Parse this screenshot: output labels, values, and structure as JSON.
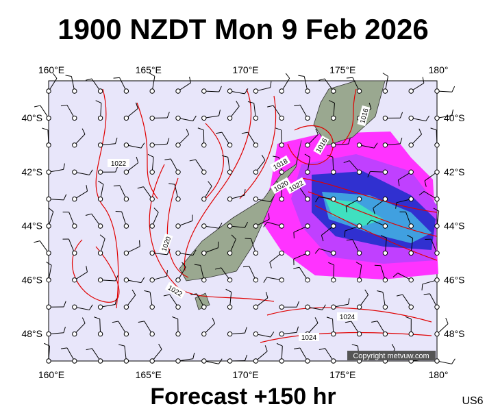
{
  "header": {
    "title": "1900 NZDT Mon 9 Feb 2026"
  },
  "axes": {
    "longitudes": [
      "160°E",
      "165°E",
      "170°E",
      "175°E",
      "180°"
    ],
    "latitudes": [
      "40°S",
      "42°S",
      "44°S",
      "46°S",
      "48°S"
    ]
  },
  "isobar_labels": [
    "1022",
    "1016",
    "1018",
    "1020",
    "1022",
    "1020",
    "1022",
    "1024",
    "1024",
    "1016"
  ],
  "copyright": "Copyright metvuw.com",
  "footer": {
    "forecast": "Forecast +150 hr",
    "code": "US6"
  }
}
